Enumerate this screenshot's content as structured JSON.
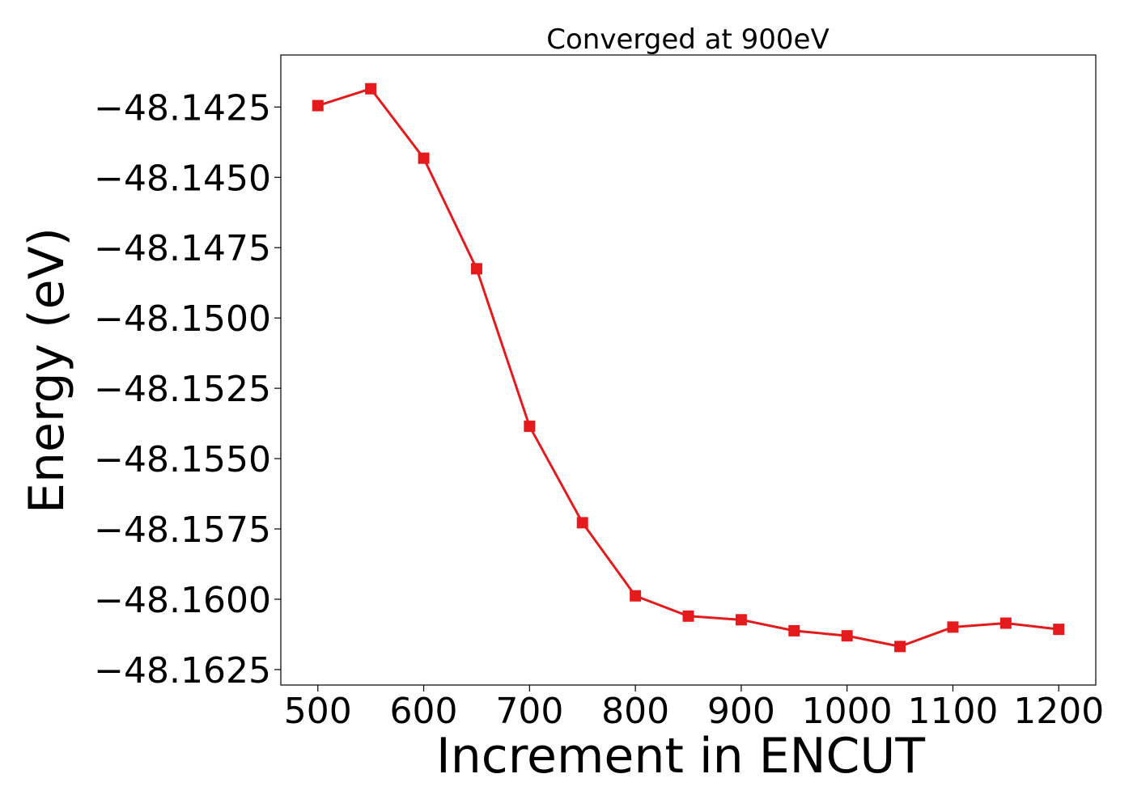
{
  "chart_data": {
    "type": "line",
    "title": "Converged at 900eV",
    "xlabel": "Increment in ENCUT",
    "ylabel": "Energy (eV)",
    "xlim": [
      465,
      1235
    ],
    "ylim": [
      -48.16305,
      -48.14065
    ],
    "xticks": [
      500,
      600,
      700,
      800,
      900,
      1000,
      1100,
      1200
    ],
    "xtick_labels": [
      "500",
      "600",
      "700",
      "800",
      "900",
      "1000",
      "1100",
      "1200"
    ],
    "yticks": [
      -48.1425,
      -48.145,
      -48.1475,
      -48.15,
      -48.1525,
      -48.155,
      -48.1575,
      -48.16,
      -48.1625
    ],
    "ytick_labels": [
      "−48.1425",
      "−48.1450",
      "−48.1475",
      "−48.1500",
      "−48.1525",
      "−48.1550",
      "−48.1575",
      "−48.1600",
      "−48.1625"
    ],
    "grid": false,
    "legend": "none",
    "series": [
      {
        "color": "#e41a1c",
        "marker": "square",
        "x": [
          500,
          550,
          600,
          650,
          700,
          750,
          800,
          850,
          900,
          950,
          1000,
          1050,
          1100,
          1150,
          1200
        ],
        "y": [
          -48.14245,
          -48.14185,
          -48.14432,
          -48.14825,
          -48.15385,
          -48.15728,
          -48.15988,
          -48.1606,
          -48.16073,
          -48.16112,
          -48.1613,
          -48.16168,
          -48.16099,
          -48.16085,
          -48.16107
        ]
      }
    ]
  }
}
